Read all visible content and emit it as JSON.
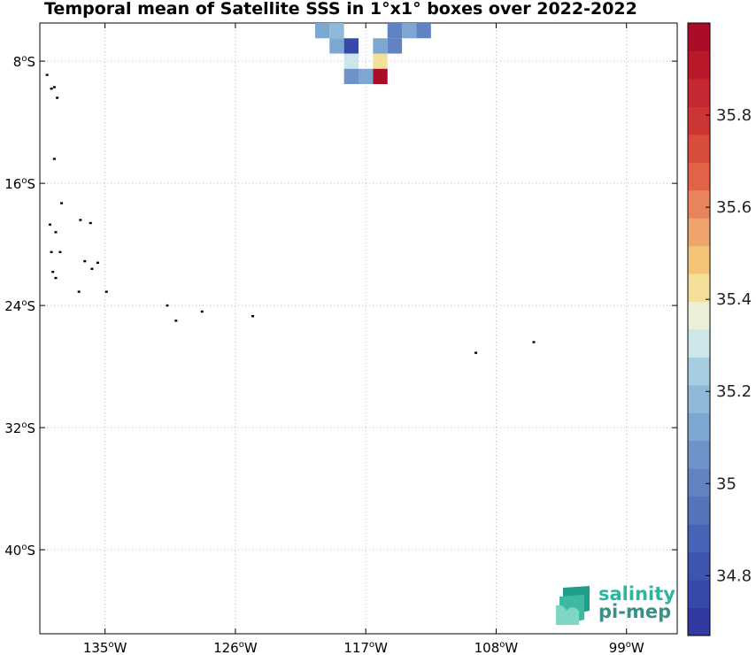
{
  "title": "Temporal mean of Satellite SSS in 1°x1° boxes over 2022-2022",
  "map": {
    "lon_range": [
      -139.5,
      -95.5
    ],
    "lat_range": [
      -45.5,
      -5.5
    ],
    "x_ticks": [
      {
        "lon": -135,
        "label": "135",
        "hemi": "W"
      },
      {
        "lon": -126,
        "label": "126",
        "hemi": "W"
      },
      {
        "lon": -117,
        "label": "117",
        "hemi": "W"
      },
      {
        "lon": -108,
        "label": "108",
        "hemi": "W"
      },
      {
        "lon": -99,
        "label": "99",
        "hemi": "W"
      }
    ],
    "y_ticks": [
      {
        "lat": -8,
        "label": "8",
        "hemi": "S"
      },
      {
        "lat": -16,
        "label": "16",
        "hemi": "S"
      },
      {
        "lat": -24,
        "label": "24",
        "hemi": "S"
      },
      {
        "lat": -32,
        "label": "32",
        "hemi": "S"
      },
      {
        "lat": -40,
        "label": "40",
        "hemi": "S"
      }
    ],
    "degree_mark": "o",
    "grid": "dotted"
  },
  "chart_data": {
    "type": "heatmap",
    "title": "Temporal mean of Satellite SSS in 1°x1° boxes over 2022-2022",
    "cell_size_deg": 1,
    "cells": [
      {
        "lon": -120,
        "lat": -6,
        "value": 35.15
      },
      {
        "lon": -119,
        "lat": -6,
        "value": 35.2
      },
      {
        "lon": -115,
        "lat": -6,
        "value": 35.0
      },
      {
        "lon": -114,
        "lat": -6,
        "value": 35.1
      },
      {
        "lon": -113,
        "lat": -6,
        "value": 35.0
      },
      {
        "lon": -119,
        "lat": -7,
        "value": 35.15
      },
      {
        "lon": -118,
        "lat": -7,
        "value": 34.75
      },
      {
        "lon": -116,
        "lat": -7,
        "value": 35.15
      },
      {
        "lon": -115,
        "lat": -7,
        "value": 35.0
      },
      {
        "lon": -118,
        "lat": -8,
        "value": 35.3
      },
      {
        "lon": -116,
        "lat": -8,
        "value": 35.4
      },
      {
        "lon": -118,
        "lat": -9,
        "value": 35.05
      },
      {
        "lon": -117,
        "lat": -9,
        "value": 35.1
      },
      {
        "lon": -116,
        "lat": -9,
        "value": 35.95
      }
    ],
    "islands": [
      {
        "lon": -139.0,
        "lat": -8.9
      },
      {
        "lon": -138.5,
        "lat": -9.7
      },
      {
        "lon": -138.7,
        "lat": -9.8
      },
      {
        "lon": -138.3,
        "lat": -10.4
      },
      {
        "lon": -138.5,
        "lat": -14.4
      },
      {
        "lon": -138.0,
        "lat": -17.3
      },
      {
        "lon": -138.8,
        "lat": -18.7
      },
      {
        "lon": -138.4,
        "lat": -19.2
      },
      {
        "lon": -136.7,
        "lat": -18.4
      },
      {
        "lon": -136.0,
        "lat": -18.6
      },
      {
        "lon": -138.7,
        "lat": -20.5
      },
      {
        "lon": -138.1,
        "lat": -20.5
      },
      {
        "lon": -136.4,
        "lat": -21.1
      },
      {
        "lon": -135.9,
        "lat": -21.6
      },
      {
        "lon": -135.5,
        "lat": -21.2
      },
      {
        "lon": -138.6,
        "lat": -21.8
      },
      {
        "lon": -138.4,
        "lat": -22.2
      },
      {
        "lon": -136.8,
        "lat": -23.1
      },
      {
        "lon": -134.9,
        "lat": -23.1
      },
      {
        "lon": -130.7,
        "lat": -24.0
      },
      {
        "lon": -130.1,
        "lat": -25.0
      },
      {
        "lon": -128.3,
        "lat": -24.4
      },
      {
        "lon": -124.8,
        "lat": -24.7
      },
      {
        "lon": -109.4,
        "lat": -27.1
      },
      {
        "lon": -105.4,
        "lat": -26.4
      }
    ]
  },
  "colorbar": {
    "min": 34.67,
    "max": 36.0,
    "step": 0.05,
    "colors": [
      "#3239a0",
      "#3748a8",
      "#3d55b0",
      "#4665b7",
      "#5474bc",
      "#6283c2",
      "#6d93c9",
      "#7ba7d1",
      "#8eb9d9",
      "#a6cee0",
      "#cde6e9",
      "#ebefd7",
      "#f5e09a",
      "#f4c476",
      "#eea46b",
      "#e8835b",
      "#e06347",
      "#d84c3c",
      "#cd3535",
      "#c42831",
      "#b81a2a",
      "#ab0d28"
    ],
    "ticks": [
      34.8,
      35.0,
      35.2,
      35.4,
      35.6,
      35.8
    ],
    "tick_labels": [
      "34.8",
      "35",
      "35.2",
      "35.4",
      "35.6",
      "35.8"
    ]
  },
  "logo": {
    "line1": "salinity",
    "line2": "pi-mep"
  }
}
